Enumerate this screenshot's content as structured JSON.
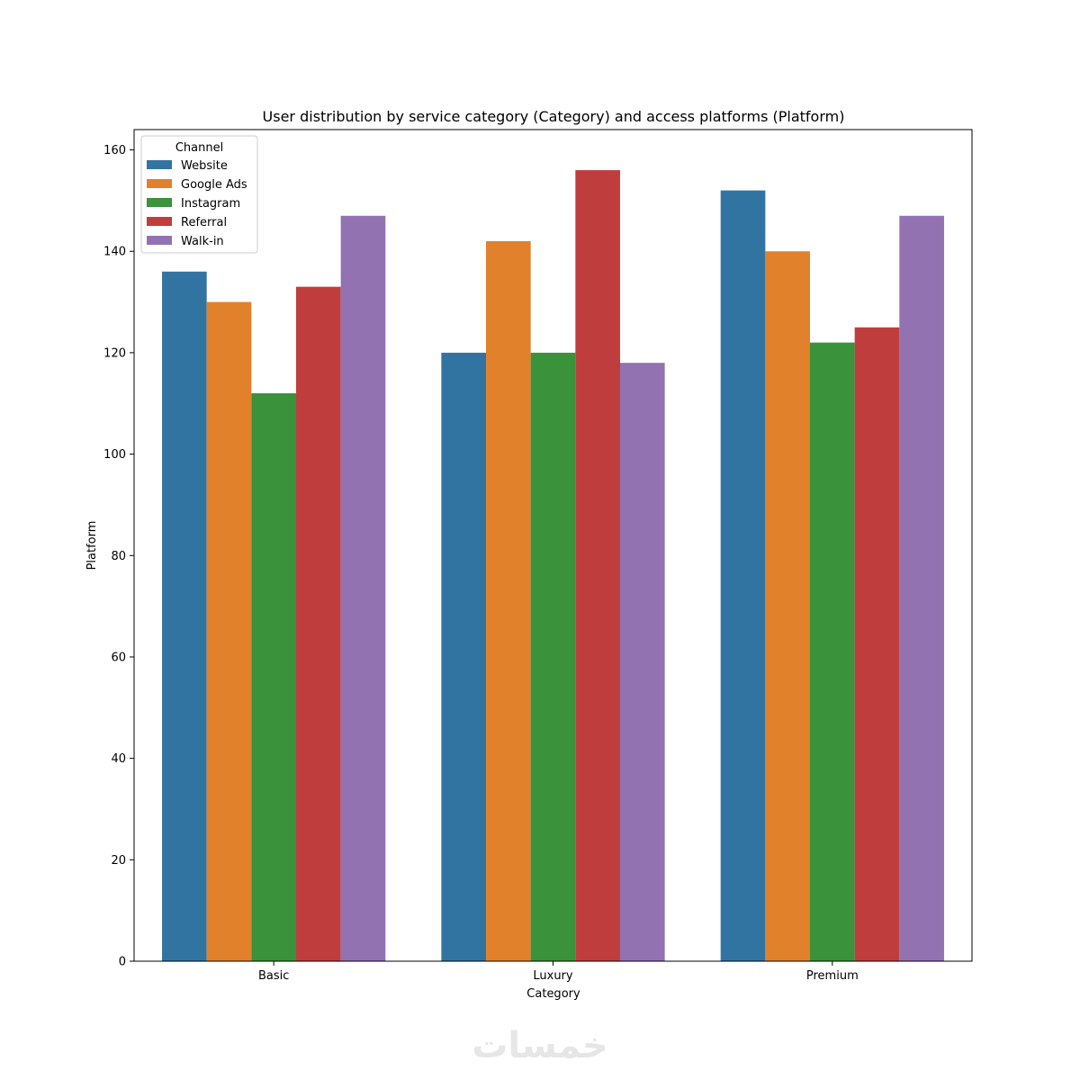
{
  "chart_data": {
    "type": "bar",
    "title": "User distribution by service category (Category) and access platforms (Platform)",
    "xlabel": "Category",
    "ylabel": "Platform",
    "categories": [
      "Basic",
      "Luxury",
      "Premium"
    ],
    "ylim": [
      0,
      164
    ],
    "yticks": [
      "0",
      "20",
      "40",
      "60",
      "80",
      "100",
      "120",
      "140",
      "160"
    ],
    "grid": false,
    "legend": {
      "title": "Channel",
      "placement": "top-left"
    },
    "series": [
      {
        "name": "Website",
        "color": "#3274a1",
        "values": [
          136,
          120,
          152
        ]
      },
      {
        "name": "Google Ads",
        "color": "#e1812c",
        "values": [
          130,
          142,
          140
        ]
      },
      {
        "name": "Instagram",
        "color": "#3a923a",
        "values": [
          112,
          120,
          122
        ]
      },
      {
        "name": "Referral",
        "color": "#c03d3e",
        "values": [
          133,
          156,
          125
        ]
      },
      {
        "name": "Walk-in",
        "color": "#9372b2",
        "values": [
          147,
          118,
          147
        ]
      }
    ]
  },
  "watermark": {
    "text": "خمسات"
  }
}
